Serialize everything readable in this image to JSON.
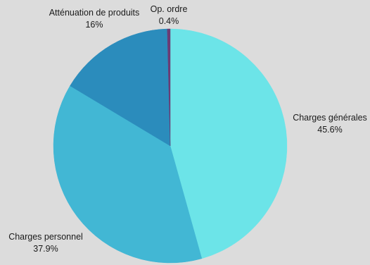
{
  "chart_data": {
    "type": "pie",
    "title": "",
    "slices": [
      {
        "label": "Charges générales",
        "value": 45.6,
        "display": "45.6%",
        "color": "#6ce4e8"
      },
      {
        "label": "Charges personnel",
        "value": 37.9,
        "display": "37.9%",
        "color": "#42b7d4"
      },
      {
        "label": "Atténuation de produits",
        "value": 16,
        "display": "16%",
        "color": "#2b8cbc"
      },
      {
        "label": "Op. ordre",
        "value": 0.4,
        "display": "0.4%",
        "color": "#6b3c74"
      }
    ],
    "legend": "none",
    "start": "top, clockwise"
  }
}
